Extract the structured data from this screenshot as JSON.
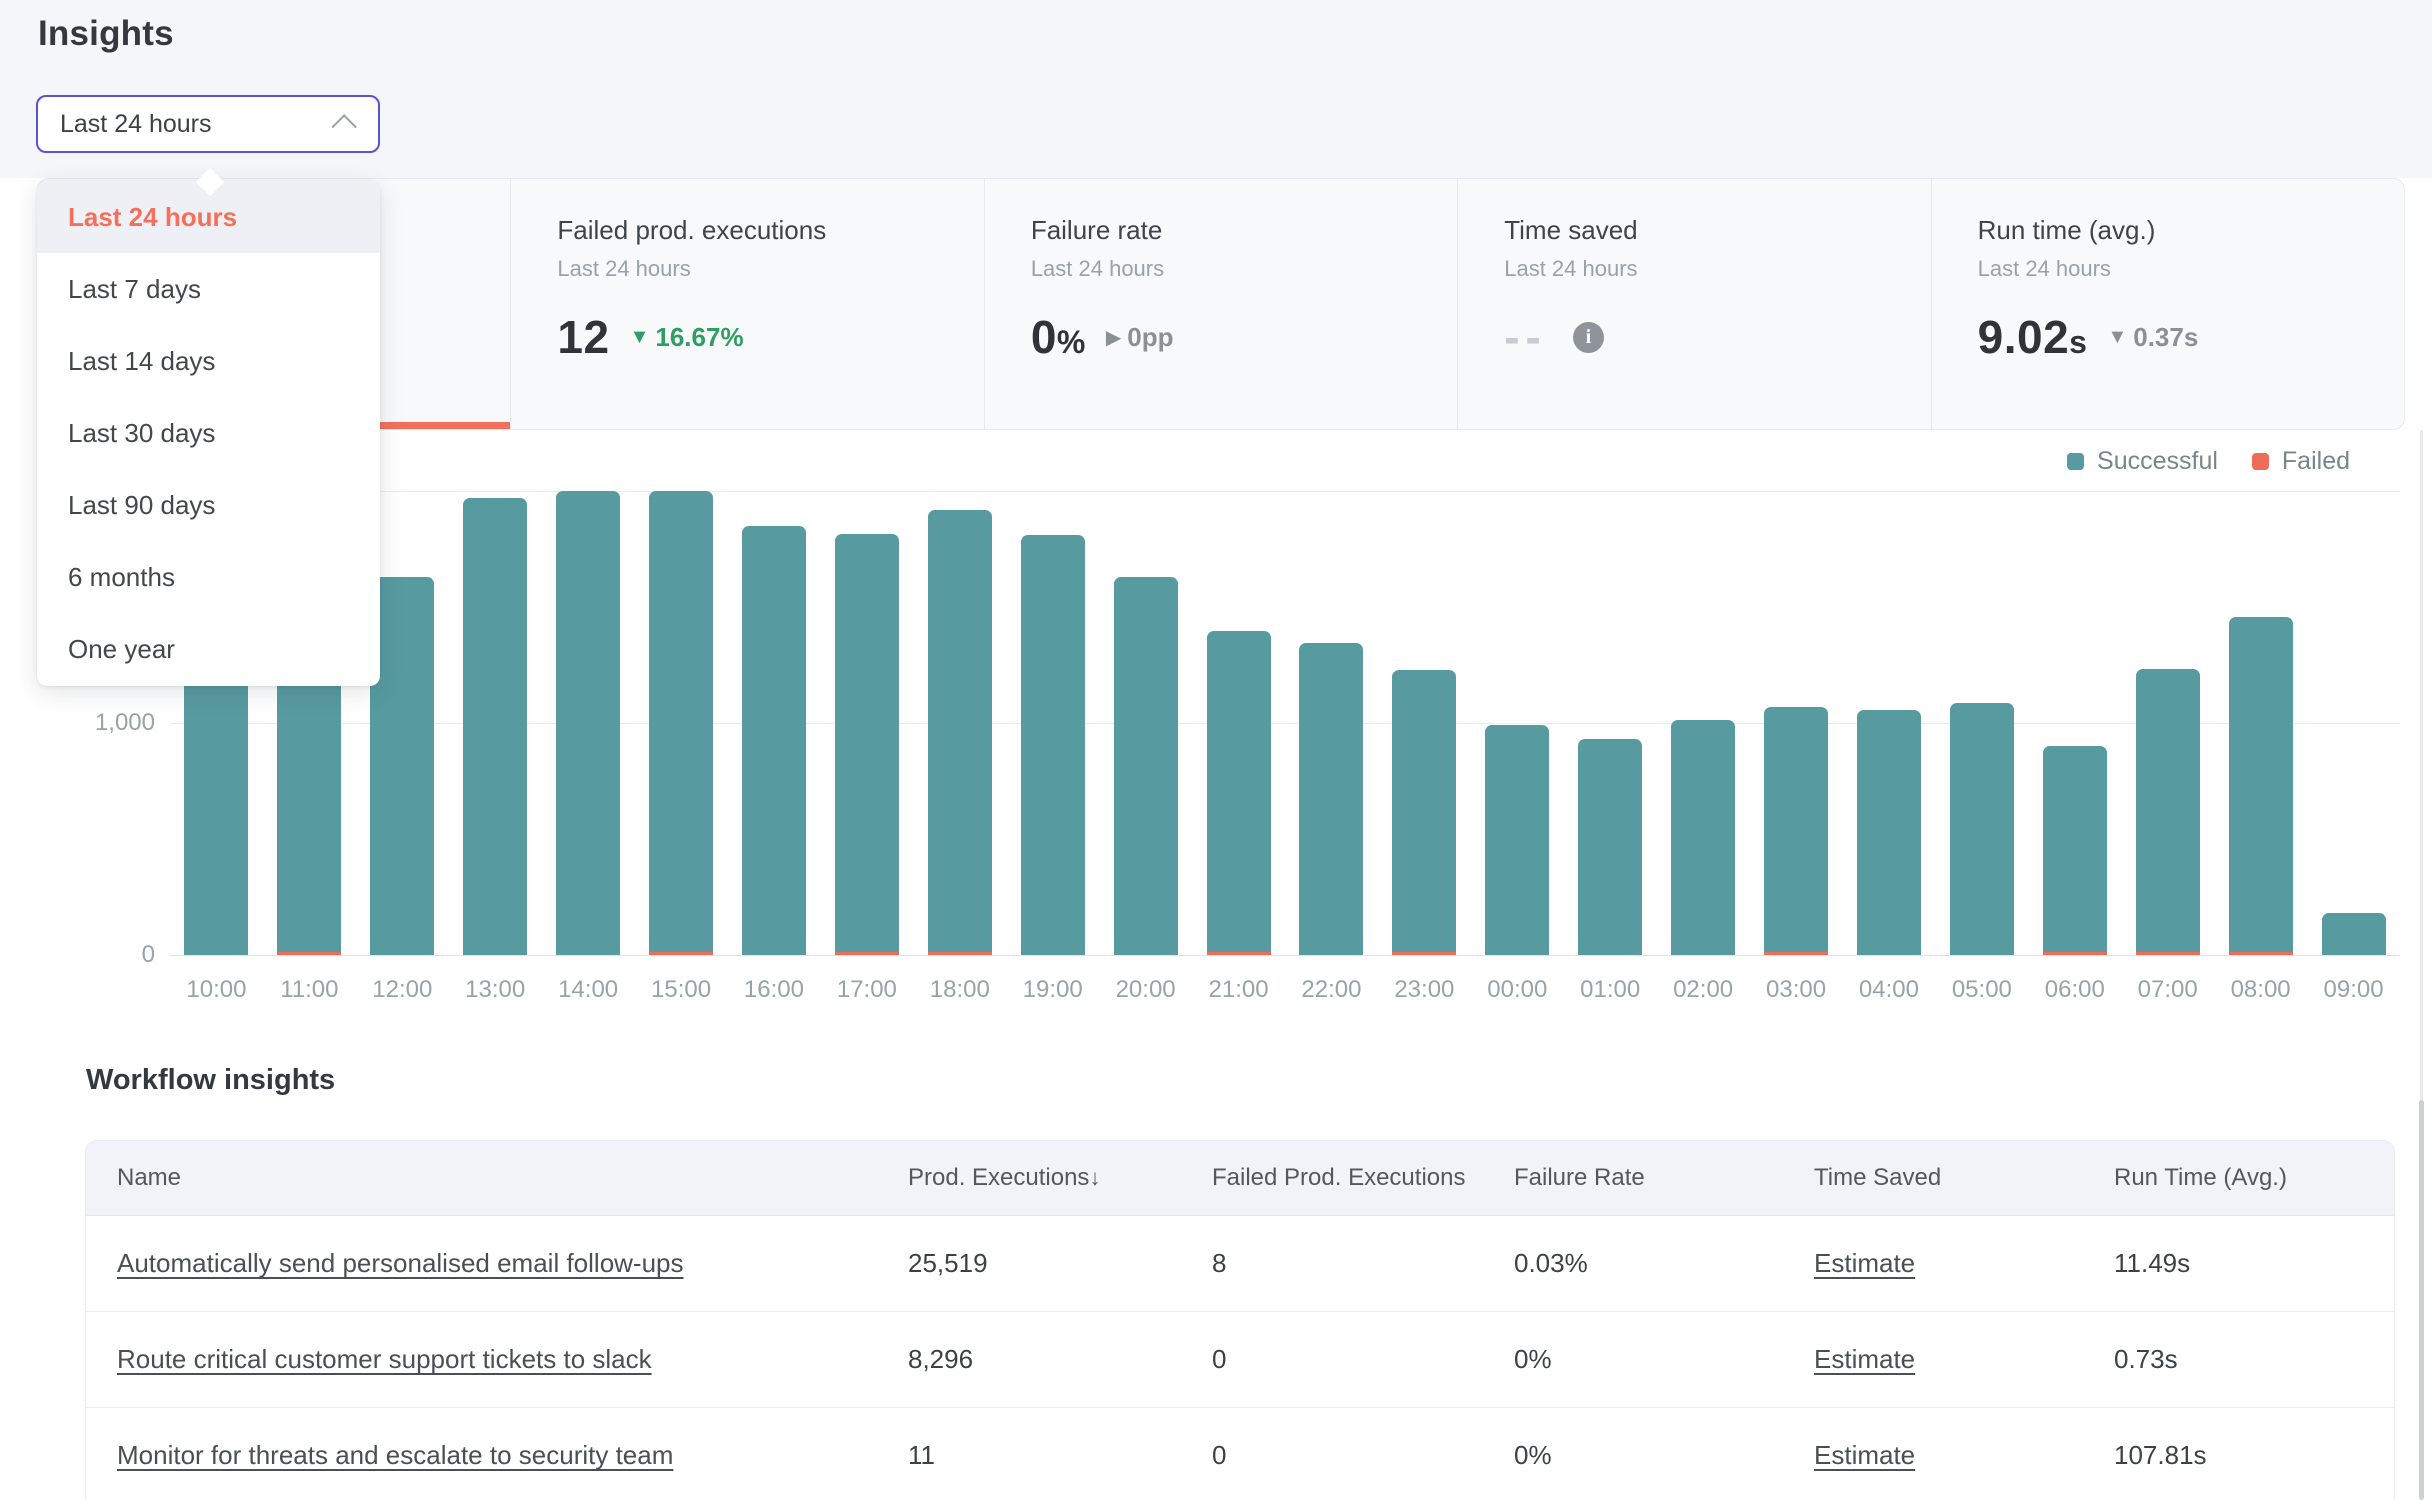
{
  "page": {
    "title": "Insights"
  },
  "colors": {
    "accent_orange": "#f0705c",
    "teal": "#579aa0",
    "select_border_purple": "#5a52d5",
    "delta_green": "#2f9e63"
  },
  "time_range": {
    "selected": "Last 24 hours",
    "selected_index": 0,
    "options": [
      "Last 24 hours",
      "Last 7 days",
      "Last 14 days",
      "Last 30 days",
      "Last 90 days",
      "6 months",
      "One year"
    ]
  },
  "stat_cards": [
    {
      "id": "active-metric",
      "title": "",
      "subtitle": "",
      "value": "",
      "active": true
    },
    {
      "id": "failed-prod-executions",
      "title": "Failed prod. executions",
      "subtitle": "Last 24 hours",
      "value": "12",
      "delta": "16.67%",
      "delta_direction": "down",
      "delta_color": "green"
    },
    {
      "id": "failure-rate",
      "title": "Failure rate",
      "subtitle": "Last 24 hours",
      "value": "0",
      "value_suffix": "%",
      "delta": "0pp",
      "delta_direction": "right",
      "delta_color": "gray"
    },
    {
      "id": "time-saved",
      "title": "Time saved",
      "subtitle": "Last 24 hours",
      "value": "--",
      "muted_value": true,
      "info_icon": true
    },
    {
      "id": "run-time-avg",
      "title": "Run time (avg.)",
      "subtitle": "Last 24 hours",
      "value": "9.02",
      "value_suffix": "s",
      "delta": "0.37s",
      "delta_direction": "down",
      "delta_color": "gray"
    }
  ],
  "chart_data": {
    "type": "bar",
    "stacked": true,
    "x": [
      "10:00",
      "11:00",
      "12:00",
      "13:00",
      "14:00",
      "15:00",
      "16:00",
      "17:00",
      "18:00",
      "19:00",
      "20:00",
      "21:00",
      "22:00",
      "23:00",
      "00:00",
      "01:00",
      "02:00",
      "03:00",
      "04:00",
      "05:00",
      "06:00",
      "07:00",
      "08:00",
      "09:00"
    ],
    "series": [
      {
        "name": "Successful",
        "color": "#579aa0",
        "values": [
          1230,
          1260,
          1630,
          1970,
          2000,
          1985,
          1850,
          1800,
          1905,
          1810,
          1630,
          1385,
          1345,
          1215,
          990,
          930,
          1015,
          1055,
          1055,
          1085,
          890,
          1220,
          1445,
          180
        ]
      },
      {
        "name": "Failed",
        "color": "#ee6d58",
        "values": [
          0,
          2,
          0,
          0,
          0,
          1,
          0,
          1,
          1,
          0,
          0,
          1,
          0,
          1,
          0,
          0,
          0,
          1,
          0,
          0,
          1,
          2,
          1,
          0
        ]
      }
    ],
    "y_ticks": [
      {
        "value": 0,
        "label": "0"
      },
      {
        "value": 1000,
        "label": "1,000"
      },
      {
        "value": 2000,
        "label": ""
      }
    ],
    "ylim": [
      0,
      2100
    ],
    "grid": true,
    "legend_position": "top-right"
  },
  "workflow_insights": {
    "heading": "Workflow insights",
    "columns": [
      {
        "label": "Name",
        "key": "name"
      },
      {
        "label": "Prod. Executions",
        "key": "prod_executions",
        "sorted": "desc"
      },
      {
        "label": "Failed Prod. Executions",
        "key": "failed_prod_executions"
      },
      {
        "label": "Failure Rate",
        "key": "failure_rate"
      },
      {
        "label": "Time Saved",
        "key": "time_saved"
      },
      {
        "label": "Run Time (Avg.)",
        "key": "run_time"
      }
    ],
    "rows": [
      {
        "name": "Automatically send personalised email follow-ups",
        "prod_executions": "25,519",
        "failed_prod_executions": "8",
        "failure_rate": "0.03%",
        "time_saved": "Estimate",
        "run_time": "11.49s"
      },
      {
        "name": "Route critical customer support tickets to slack",
        "prod_executions": "8,296",
        "failed_prod_executions": "0",
        "failure_rate": "0%",
        "time_saved": "Estimate",
        "run_time": "0.73s"
      },
      {
        "name": "Monitor for threats and escalate to security team",
        "prod_executions": "11",
        "failed_prod_executions": "0",
        "failure_rate": "0%",
        "time_saved": "Estimate",
        "run_time": "107.81s"
      }
    ]
  }
}
